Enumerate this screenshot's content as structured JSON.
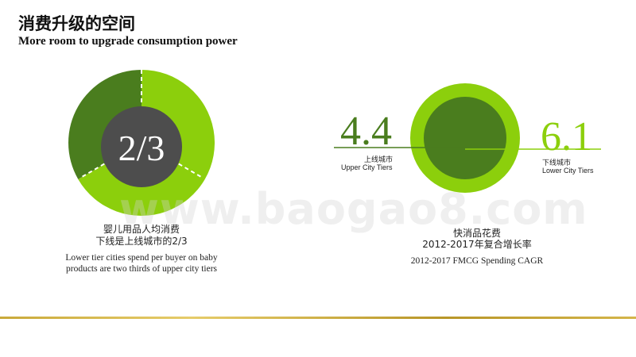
{
  "title": {
    "cn": "消费升级的空间",
    "en": "More room to upgrade consumption power"
  },
  "left_panel": {
    "fraction_label": "2/3",
    "caption_cn_line1": "婴儿用品人均消费",
    "caption_cn_line2": "下线是上线城市的2/3",
    "caption_en_line1": "Lower tier cities spend per buyer on baby",
    "caption_en_line2": "products are two thirds of upper city tiers",
    "donut_share": 0.6667,
    "colors": {
      "light": "#8ccf0c",
      "dark": "#4a7d1e",
      "center": "#4d4d4d"
    }
  },
  "right_panel": {
    "upper": {
      "value": "4.4",
      "label_cn": "上线城市",
      "label_en": "Upper City Tiers"
    },
    "lower": {
      "value": "6.1",
      "label_cn": "下线城市",
      "label_en": "Lower  City Tiers"
    },
    "caption_cn_line1": "快消品花费",
    "caption_cn_line2": "2012-2017年复合增长率",
    "caption_en": "2012-2017 FMCG Spending CAGR",
    "colors": {
      "ring": "#8ccf0c",
      "inner": "#4a7d1e"
    }
  },
  "watermark": "www.baogao8.com"
}
